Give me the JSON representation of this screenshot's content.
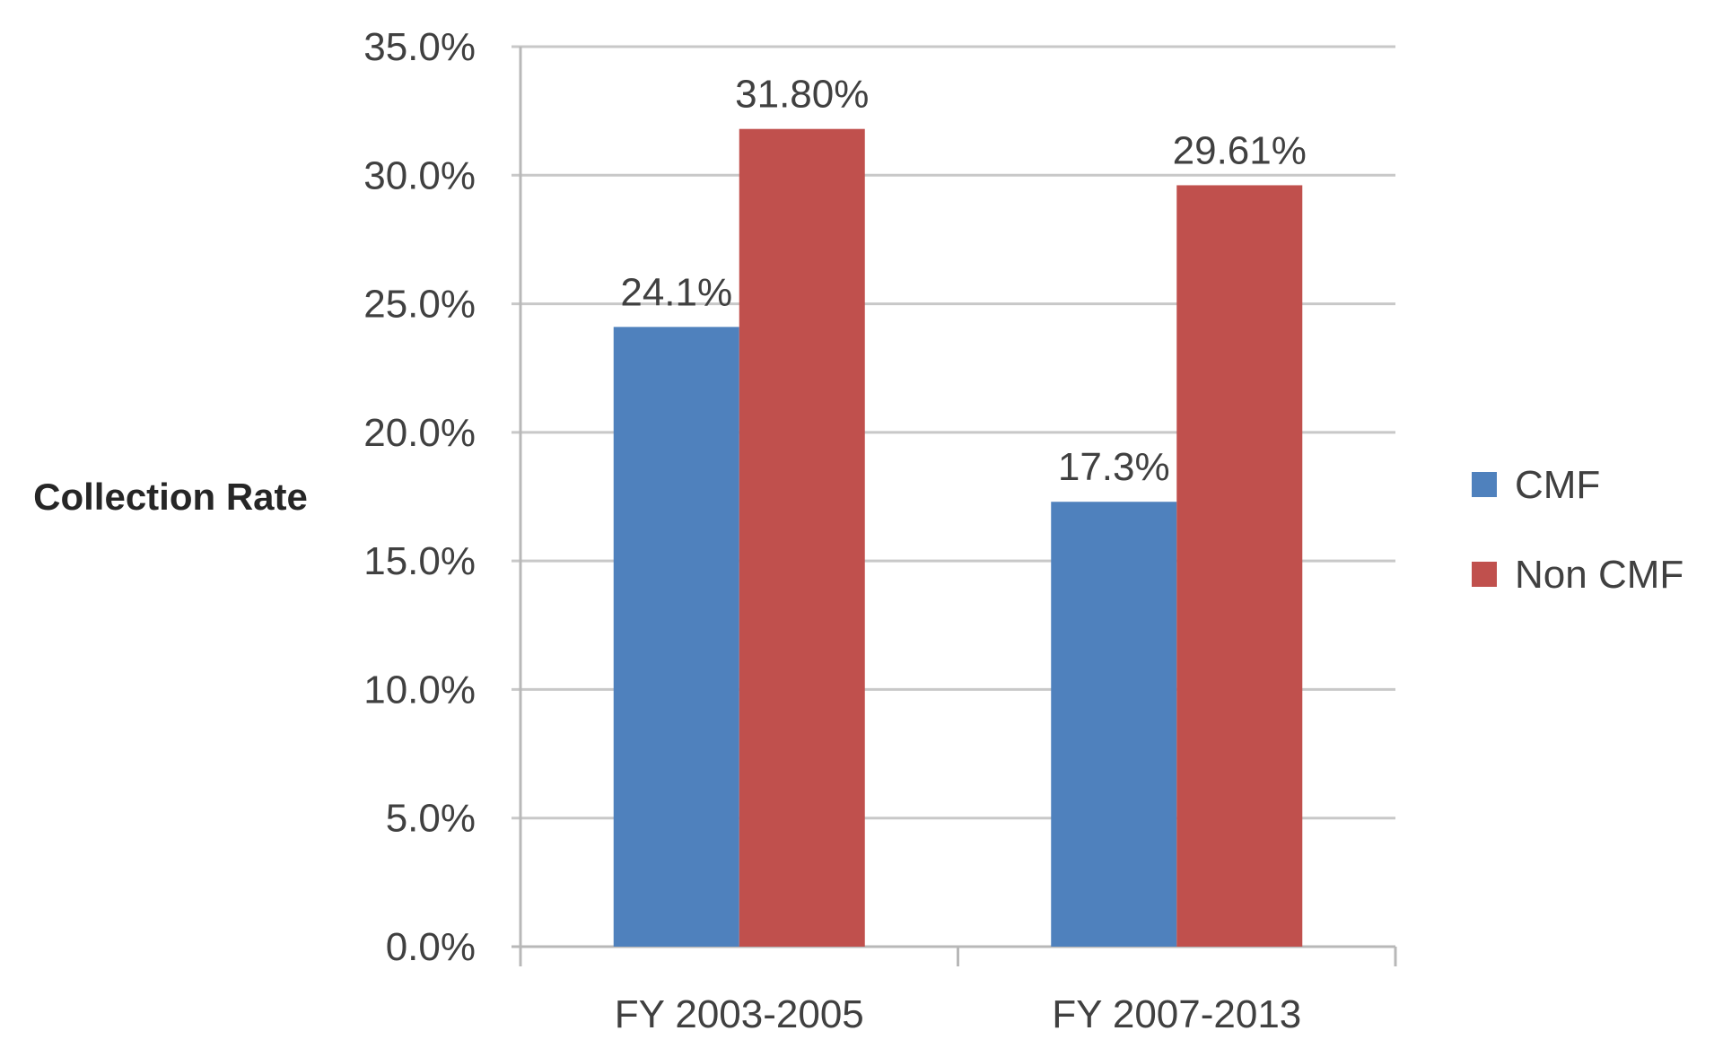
{
  "chart_data": {
    "type": "bar",
    "title": "",
    "xlabel": "",
    "ylabel": "Collection Rate",
    "categories": [
      "FY 2003-2005",
      "FY 2007-2013"
    ],
    "series": [
      {
        "name": "CMF",
        "values": [
          24.1,
          17.3
        ],
        "labels": [
          "24.1%",
          "17.3%"
        ],
        "color": "#4f81bd"
      },
      {
        "name": "Non CMF",
        "values": [
          31.8,
          29.61
        ],
        "labels": [
          "31.80%",
          "29.61%"
        ],
        "color": "#c0504d"
      }
    ],
    "ylim": [
      0,
      35
    ],
    "yticks": [
      0,
      5,
      10,
      15,
      20,
      25,
      30,
      35
    ],
    "ytick_labels": [
      "0.0%",
      "5.0%",
      "10.0%",
      "15.0%",
      "20.0%",
      "25.0%",
      "30.0%",
      "35.0%"
    ],
    "grid": true,
    "legend_position": "right"
  }
}
